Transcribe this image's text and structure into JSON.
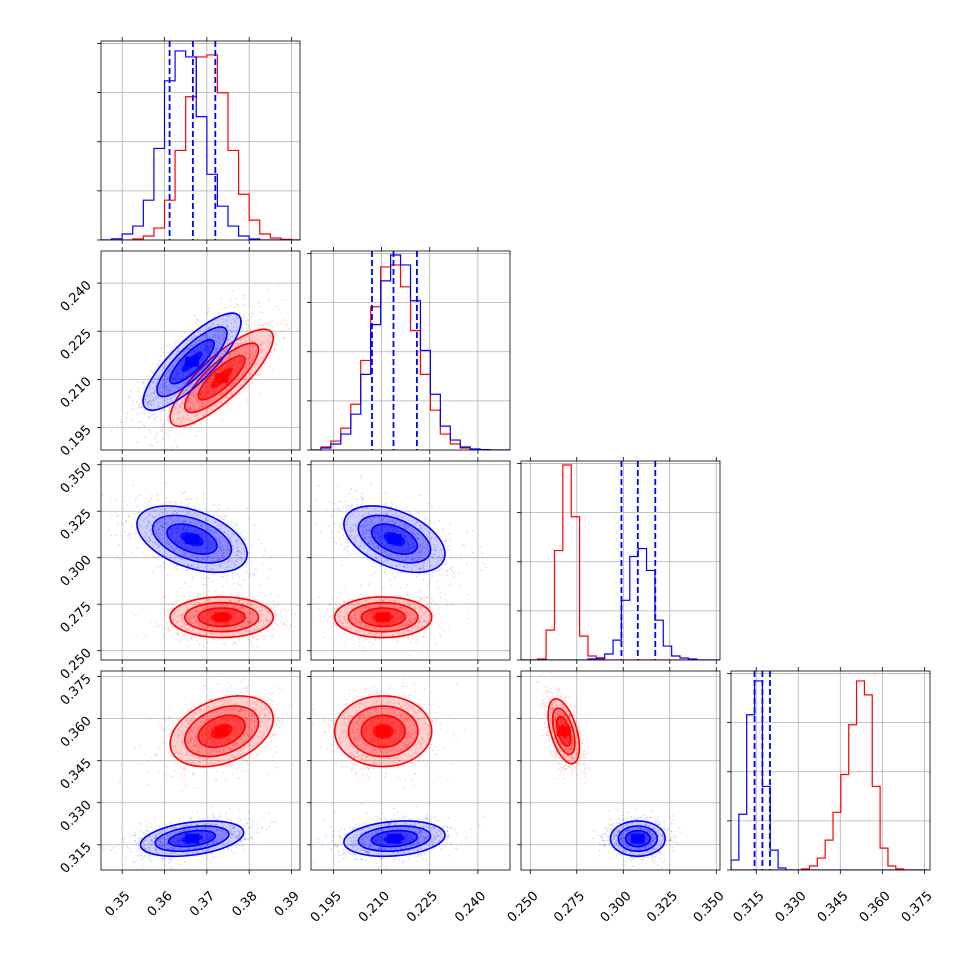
{
  "chart_data": {
    "type": "corner",
    "grid": true,
    "colors": {
      "series_a": "#0000ff",
      "series_b": "#ff0000",
      "quantile": "#0000ff"
    },
    "params": [
      {
        "range": [
          0.345,
          0.392
        ],
        "ticks": [
          0.35,
          0.36,
          0.37,
          0.38,
          0.39
        ],
        "tick_labels": [
          "0.35",
          "0.36",
          "0.37",
          "0.38",
          "0.39"
        ],
        "quantiles": [
          0.3612,
          0.3667,
          0.372
        ],
        "hist": {
          "bin_start": 0.345,
          "bin_width": 0.0025,
          "series_a": [
            0,
            0.006,
            0.03,
            0.07,
            0.2,
            0.46,
            0.8,
            0.95,
            0.92,
            0.62,
            0.33,
            0.17,
            0.07,
            0.02,
            0.005,
            0,
            0,
            0,
            0
          ],
          "series_b": [
            0,
            0,
            0,
            0.005,
            0.02,
            0.06,
            0.2,
            0.45,
            0.72,
            0.92,
            0.93,
            0.74,
            0.45,
            0.23,
            0.1,
            0.03,
            0.01,
            0.003,
            0
          ]
        }
      },
      {
        "range": [
          0.188,
          0.25
        ],
        "ticks": [
          0.195,
          0.21,
          0.225,
          0.24
        ],
        "tick_labels": [
          "0.195",
          "0.210",
          "0.225",
          "0.240"
        ],
        "quantiles": [
          0.207,
          0.2137,
          0.221
        ],
        "hist": {
          "bin_start": 0.188,
          "bin_width": 0.0031,
          "series_a": [
            0,
            0.01,
            0.03,
            0.08,
            0.18,
            0.38,
            0.63,
            0.85,
            0.98,
            0.93,
            0.75,
            0.5,
            0.28,
            0.12,
            0.05,
            0.015,
            0.005,
            0.002,
            0,
            0
          ],
          "series_b": [
            0,
            0.015,
            0.045,
            0.11,
            0.23,
            0.45,
            0.72,
            0.92,
            0.93,
            0.82,
            0.6,
            0.38,
            0.2,
            0.08,
            0.03,
            0.01,
            0.003,
            0,
            0,
            0
          ]
        }
      },
      {
        "range": [
          0.245,
          0.352
        ],
        "ticks": [
          0.25,
          0.275,
          0.3,
          0.325,
          0.35
        ],
        "tick_labels": [
          "0.250",
          "0.275",
          "0.300",
          "0.325",
          "0.350"
        ],
        "quantiles": [
          0.299,
          0.3078,
          0.3172
        ],
        "hist": {
          "bin_start": 0.245,
          "bin_width": 0.0045,
          "series_a": [
            0,
            0,
            0,
            0,
            0,
            0,
            0,
            0,
            0.005,
            0.01,
            0.03,
            0.1,
            0.3,
            0.52,
            0.56,
            0.45,
            0.2,
            0.07,
            0.02,
            0.01,
            0.005,
            0,
            0,
            0
          ],
          "series_b": [
            0,
            0,
            0.005,
            0.15,
            0.55,
            0.98,
            0.72,
            0.12,
            0.02,
            0.005,
            0,
            0,
            0,
            0,
            0,
            0,
            0,
            0,
            0,
            0,
            0,
            0,
            0,
            0
          ]
        }
      },
      {
        "range": [
          0.306,
          0.377
        ],
        "ticks": [
          0.315,
          0.33,
          0.345,
          0.36,
          0.375
        ],
        "tick_labels": [
          "0.315",
          "0.330",
          "0.345",
          "0.360",
          "0.375"
        ],
        "quantiles": [
          0.3144,
          0.3172,
          0.3199
        ],
        "hist": {
          "bin_start": 0.306,
          "bin_width": 0.0028,
          "series_a": [
            0.05,
            0.28,
            0.78,
            0.95,
            0.42,
            0.1,
            0.01,
            0,
            0,
            0,
            0,
            0,
            0,
            0,
            0,
            0,
            0,
            0,
            0,
            0,
            0,
            0,
            0,
            0,
            0
          ],
          "series_b": [
            0,
            0,
            0,
            0,
            0,
            0,
            0,
            0,
            0,
            0.005,
            0.02,
            0.06,
            0.15,
            0.29,
            0.48,
            0.73,
            0.95,
            0.88,
            0.42,
            0.11,
            0.02,
            0.005,
            0,
            0,
            0
          ]
        }
      }
    ],
    "pairs": [
      {
        "x": 0,
        "y": 1,
        "series_a": {
          "mean": [
            0.3665,
            0.2155
          ],
          "sd": [
            0.0055,
            0.0072
          ],
          "rho": 0.82
        },
        "series_b": {
          "mean": [
            0.3735,
            0.2105
          ],
          "sd": [
            0.0058,
            0.0072
          ],
          "rho": 0.82
        }
      },
      {
        "x": 0,
        "y": 2,
        "series_a": {
          "mean": [
            0.3665,
            0.31
          ],
          "sd": [
            0.0062,
            0.0085
          ],
          "rho": -0.45
        },
        "series_b": {
          "mean": [
            0.3735,
            0.268
          ],
          "sd": [
            0.0058,
            0.0052
          ],
          "rho": 0.0
        }
      },
      {
        "x": 0,
        "y": 3,
        "series_a": {
          "mean": [
            0.3665,
            0.3172
          ],
          "sd": [
            0.0058,
            0.003
          ],
          "rho": 0.35
        },
        "series_b": {
          "mean": [
            0.3735,
            0.3555
          ],
          "sd": [
            0.0058,
            0.006
          ],
          "rho": 0.35
        }
      },
      {
        "x": 1,
        "y": 2,
        "series_a": {
          "mean": [
            0.214,
            0.31
          ],
          "sd": [
            0.0075,
            0.0085
          ],
          "rho": -0.45
        },
        "series_b": {
          "mean": [
            0.2105,
            0.268
          ],
          "sd": [
            0.0072,
            0.0052
          ],
          "rho": 0.0
        }
      },
      {
        "x": 1,
        "y": 3,
        "series_a": {
          "mean": [
            0.214,
            0.3172
          ],
          "sd": [
            0.0075,
            0.003
          ],
          "rho": 0.2
        },
        "series_b": {
          "mean": [
            0.2105,
            0.3555
          ],
          "sd": [
            0.0072,
            0.006
          ],
          "rho": 0.0
        }
      },
      {
        "x": 2,
        "y": 3,
        "series_a": {
          "mean": [
            0.3078,
            0.3172
          ],
          "sd": [
            0.007,
            0.003
          ],
          "rho": 0.0
        },
        "series_b": {
          "mean": [
            0.268,
            0.3555
          ],
          "sd": [
            0.004,
            0.0055
          ],
          "rho": -0.5
        }
      }
    ]
  }
}
